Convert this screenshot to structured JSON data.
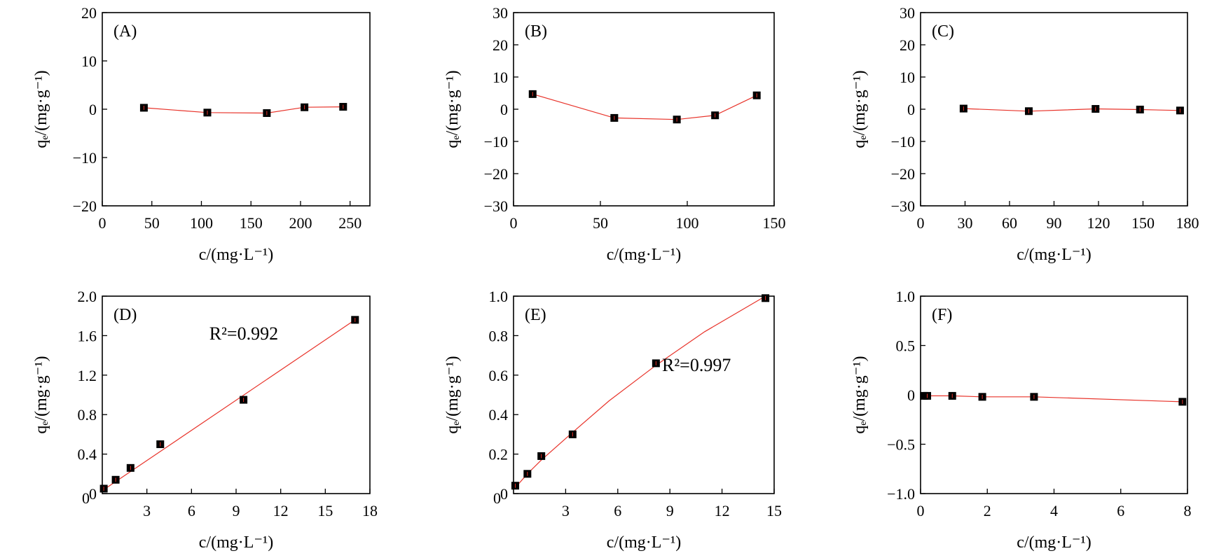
{
  "chart_data": [
    {
      "type": "line",
      "panel_label": "(A)",
      "xlabel": "c/(mg·L⁻¹)",
      "ylabel": "qₑ/(mg·g⁻¹)",
      "xlim": [
        0,
        270
      ],
      "ylim": [
        -20,
        20
      ],
      "xticks": [
        0,
        50,
        100,
        150,
        200,
        250
      ],
      "yticks": [
        -20,
        -10,
        0,
        10,
        20
      ],
      "xtick_labels": [
        "0",
        "50",
        "100",
        "150",
        "200",
        "250"
      ],
      "ytick_labels": [
        "−20",
        "−10",
        "0",
        "10",
        "20"
      ],
      "x": [
        42,
        106,
        166,
        204,
        243
      ],
      "y": [
        0.3,
        -0.7,
        -0.8,
        0.4,
        0.5
      ],
      "annotation": ""
    },
    {
      "type": "line",
      "panel_label": "(B)",
      "xlabel": "c/(mg·L⁻¹)",
      "ylabel": "qₑ/(mg·g⁻¹)",
      "xlim": [
        0,
        150
      ],
      "ylim": [
        -30,
        30
      ],
      "xticks": [
        0,
        50,
        100,
        150
      ],
      "yticks": [
        -30,
        -20,
        -10,
        0,
        10,
        20,
        30
      ],
      "xtick_labels": [
        "0",
        "50",
        "100",
        "150"
      ],
      "ytick_labels": [
        "−30",
        "−20",
        "−10",
        "0",
        "10",
        "20",
        "30"
      ],
      "x": [
        11,
        58,
        94,
        116,
        140
      ],
      "y": [
        4.7,
        -2.7,
        -3.2,
        -1.9,
        4.3
      ],
      "annotation": ""
    },
    {
      "type": "line",
      "panel_label": "(C)",
      "xlabel": "c/(mg·L⁻¹)",
      "ylabel": "qₑ/(mg·g⁻¹)",
      "xlim": [
        0,
        180
      ],
      "ylim": [
        -30,
        30
      ],
      "xticks": [
        0,
        30,
        60,
        90,
        120,
        150,
        180
      ],
      "yticks": [
        -30,
        -20,
        -10,
        0,
        10,
        20,
        30
      ],
      "xtick_labels": [
        "0",
        "30",
        "60",
        "90",
        "120",
        "150",
        "180"
      ],
      "ytick_labels": [
        "−30",
        "−20",
        "−10",
        "0",
        "10",
        "20",
        "30"
      ],
      "x": [
        29,
        73,
        118,
        148,
        175
      ],
      "y": [
        0.2,
        -0.6,
        0.1,
        -0.1,
        -0.4
      ],
      "annotation": ""
    },
    {
      "type": "line",
      "panel_label": "(D)",
      "xlabel": "c/(mg·L⁻¹)",
      "ylabel": "qₑ/(mg·g⁻¹)",
      "xlim": [
        0,
        18
      ],
      "ylim": [
        0,
        2.0
      ],
      "xticks": [
        3,
        6,
        9,
        12,
        15,
        18
      ],
      "yticks": [
        0,
        0.4,
        0.8,
        1.2,
        1.6,
        2.0
      ],
      "xtick_labels": [
        "3",
        "6",
        "9",
        "12",
        "15",
        "18"
      ],
      "ytick_labels": [
        "0",
        "0.4",
        "0.8",
        "1.2",
        "1.6",
        "2.0"
      ],
      "origin_label": "0",
      "x": [
        0.1,
        0.9,
        1.9,
        3.9,
        9.5,
        17.0
      ],
      "y": [
        0.05,
        0.14,
        0.26,
        0.5,
        0.95,
        1.76
      ],
      "fit_x": [
        0.1,
        17.0
      ],
      "fit_y": [
        0.04,
        1.76
      ],
      "annotation": "R²=0.992"
    },
    {
      "type": "line",
      "panel_label": "(E)",
      "xlabel": "c/(mg·L⁻¹)",
      "ylabel": "qₑ/(mg·g⁻¹)",
      "xlim": [
        0,
        15
      ],
      "ylim": [
        0,
        1.0
      ],
      "xticks": [
        3,
        6,
        9,
        12,
        15
      ],
      "yticks": [
        0,
        0.2,
        0.4,
        0.6,
        0.8,
        1.0
      ],
      "xtick_labels": [
        "3",
        "6",
        "9",
        "12",
        "15"
      ],
      "ytick_labels": [
        "0",
        "0.2",
        "0.4",
        "0.6",
        "0.8",
        "1.0"
      ],
      "origin_label": "0",
      "x": [
        0.1,
        0.8,
        1.6,
        3.4,
        8.2,
        14.5
      ],
      "y": [
        0.04,
        0.1,
        0.19,
        0.3,
        0.66,
        0.99
      ],
      "fit_x": [
        0.1,
        0.8,
        1.6,
        3.4,
        5.5,
        8.2,
        11.0,
        14.5
      ],
      "fit_y": [
        0.03,
        0.1,
        0.17,
        0.31,
        0.47,
        0.65,
        0.82,
        1.0
      ],
      "annotation": "R²=0.997"
    },
    {
      "type": "line",
      "panel_label": "(F)",
      "xlabel": "c/(mg·L⁻¹)",
      "ylabel": "qₑ/(mg·g⁻¹)",
      "xlim": [
        0,
        8
      ],
      "ylim": [
        -1.0,
        1.0
      ],
      "xticks": [
        0,
        2,
        4,
        6,
        8
      ],
      "yticks": [
        -1.0,
        -0.5,
        0,
        0.5,
        1.0
      ],
      "xtick_labels": [
        "0",
        "2",
        "4",
        "6",
        "8"
      ],
      "ytick_labels": [
        "−1.0",
        "−0.5",
        "0",
        "0.5",
        "1.0"
      ],
      "x": [
        0.1,
        0.2,
        0.95,
        1.85,
        3.4,
        7.85
      ],
      "y": [
        -0.01,
        -0.01,
        -0.01,
        -0.02,
        -0.02,
        -0.07
      ],
      "annotation": ""
    }
  ]
}
